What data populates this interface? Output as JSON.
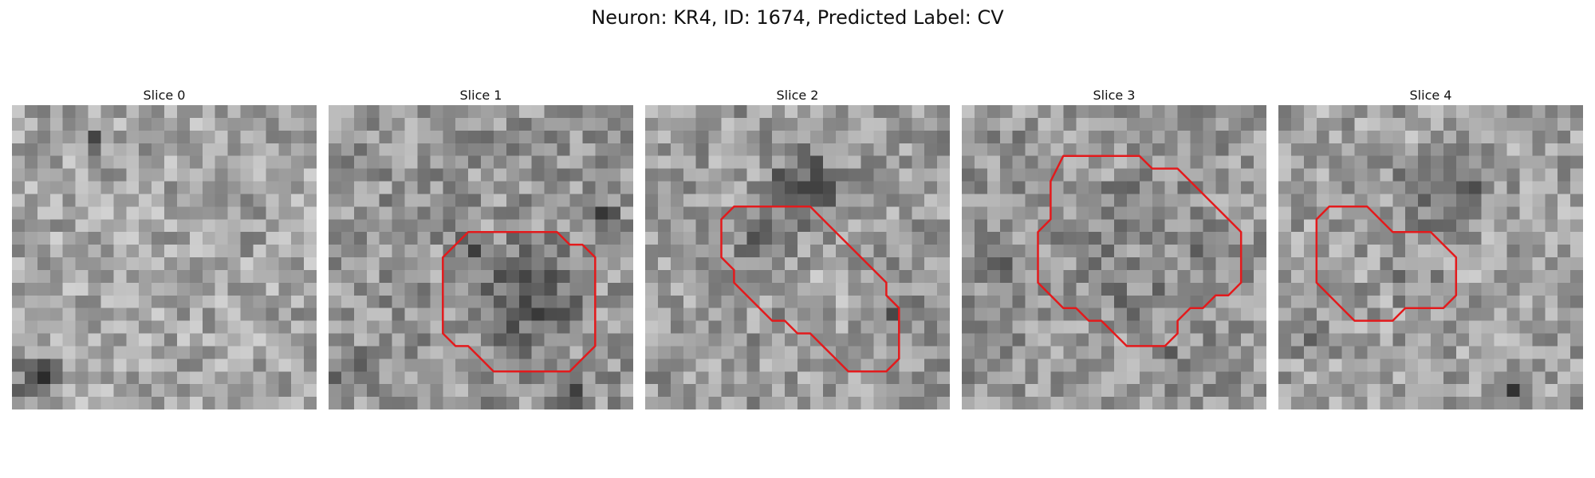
{
  "figure": {
    "title": "Neuron: KR4, ID: 1674, Predicted Label: CV"
  },
  "panels": [
    {
      "title": "Slice 0",
      "outline": []
    },
    {
      "title": "Slice 1",
      "outline": [
        [
          11,
          10
        ],
        [
          18,
          10
        ],
        [
          19,
          11
        ],
        [
          20,
          11
        ],
        [
          21,
          12
        ],
        [
          21,
          19
        ],
        [
          20,
          20
        ],
        [
          19,
          21
        ],
        [
          13,
          21
        ],
        [
          12,
          20
        ],
        [
          11,
          19
        ],
        [
          10,
          19
        ],
        [
          9,
          18
        ],
        [
          9,
          12
        ],
        [
          10,
          11
        ]
      ]
    },
    {
      "title": "Slice 2",
      "outline": [
        [
          7,
          8
        ],
        [
          13,
          8
        ],
        [
          14,
          9
        ],
        [
          15,
          10
        ],
        [
          16,
          11
        ],
        [
          17,
          12
        ],
        [
          18,
          13
        ],
        [
          19,
          14
        ],
        [
          19,
          15
        ],
        [
          20,
          16
        ],
        [
          20,
          20
        ],
        [
          19,
          21
        ],
        [
          16,
          21
        ],
        [
          15,
          20
        ],
        [
          14,
          19
        ],
        [
          13,
          18
        ],
        [
          12,
          18
        ],
        [
          11,
          17
        ],
        [
          10,
          17
        ],
        [
          9,
          16
        ],
        [
          8,
          15
        ],
        [
          7,
          14
        ],
        [
          7,
          13
        ],
        [
          6,
          12
        ],
        [
          6,
          9
        ]
      ]
    },
    {
      "title": "Slice 3",
      "outline": [
        [
          8,
          4
        ],
        [
          14,
          4
        ],
        [
          15,
          5
        ],
        [
          17,
          5
        ],
        [
          18,
          6
        ],
        [
          19,
          7
        ],
        [
          20,
          8
        ],
        [
          21,
          9
        ],
        [
          22,
          10
        ],
        [
          22,
          14
        ],
        [
          21,
          15
        ],
        [
          20,
          15
        ],
        [
          19,
          16
        ],
        [
          18,
          16
        ],
        [
          17,
          17
        ],
        [
          17,
          18
        ],
        [
          16,
          19
        ],
        [
          13,
          19
        ],
        [
          12,
          18
        ],
        [
          11,
          17
        ],
        [
          10,
          17
        ],
        [
          9,
          16
        ],
        [
          8,
          16
        ],
        [
          7,
          15
        ],
        [
          6,
          14
        ],
        [
          6,
          10
        ],
        [
          7,
          9
        ],
        [
          7,
          6
        ]
      ]
    },
    {
      "title": "Slice 4",
      "outline": [
        [
          4,
          8
        ],
        [
          7,
          8
        ],
        [
          8,
          9
        ],
        [
          9,
          10
        ],
        [
          12,
          10
        ],
        [
          13,
          11
        ],
        [
          14,
          12
        ],
        [
          14,
          15
        ],
        [
          13,
          16
        ],
        [
          10,
          16
        ],
        [
          9,
          17
        ],
        [
          6,
          17
        ],
        [
          5,
          16
        ],
        [
          4,
          15
        ],
        [
          3,
          14
        ],
        [
          3,
          9
        ]
      ]
    }
  ],
  "colors": {
    "outline": "#e31a1c"
  }
}
